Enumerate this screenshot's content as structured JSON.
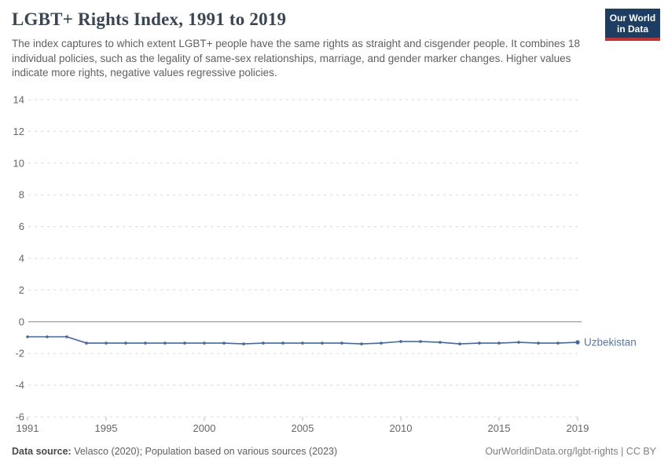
{
  "header": {
    "title": "LGBT+ Rights Index, 1991 to 2019",
    "subtitle": "The index captures to which extent LGBT+ people have the same rights as straight and cisgender people. It combines 18 individual policies, such as the legality of same-sex relationships, marriage, and gender marker changes. Higher values indicate more rights, negative values regressive policies.",
    "logo": {
      "line1": "Our World",
      "line2": "in Data",
      "bg_color": "#1d3d63",
      "accent_color": "#c7302b"
    }
  },
  "footer": {
    "datasource_label": "Data source:",
    "datasource_text": " Velasco (2020); Population based on various sources (2023)",
    "link_text": "OurWorldinData.org/lgbt-rights | CC BY"
  },
  "chart_data": {
    "type": "line",
    "title": "LGBT+ Rights Index, 1991 to 2019",
    "xlabel": "",
    "ylabel": "",
    "xlim": [
      1991,
      2019
    ],
    "ylim": [
      -6,
      14
    ],
    "x_ticks": [
      1991,
      1995,
      2000,
      2005,
      2010,
      2015,
      2019
    ],
    "y_ticks": [
      14,
      12,
      10,
      8,
      6,
      4,
      2,
      0,
      -2,
      -4,
      -6
    ],
    "grid": "horizontal-dashed",
    "zero_line": true,
    "legend_position": "end-of-line-label",
    "x": [
      1991,
      1992,
      1993,
      1994,
      1995,
      1996,
      1997,
      1998,
      1999,
      2000,
      2001,
      2002,
      2003,
      2004,
      2005,
      2006,
      2007,
      2008,
      2009,
      2010,
      2011,
      2012,
      2013,
      2014,
      2015,
      2016,
      2017,
      2018,
      2019
    ],
    "series": [
      {
        "name": "Uzbekistan",
        "color": "#4268aa",
        "label_color": "#5878b0",
        "values": [
          -0.95,
          -0.95,
          -0.95,
          -1.35,
          -1.35,
          -1.35,
          -1.35,
          -1.35,
          -1.35,
          -1.35,
          -1.35,
          -1.4,
          -1.35,
          -1.35,
          -1.35,
          -1.35,
          -1.35,
          -1.4,
          -1.35,
          -1.25,
          -1.25,
          -1.3,
          -1.4,
          -1.35,
          -1.35,
          -1.3,
          -1.35,
          -1.35,
          -1.3
        ]
      }
    ],
    "colors": {
      "grid": "#dadada",
      "zero_line": "#a3a3a3",
      "tick_label": "#666666",
      "tick_mark": "#bdbdbd"
    }
  }
}
